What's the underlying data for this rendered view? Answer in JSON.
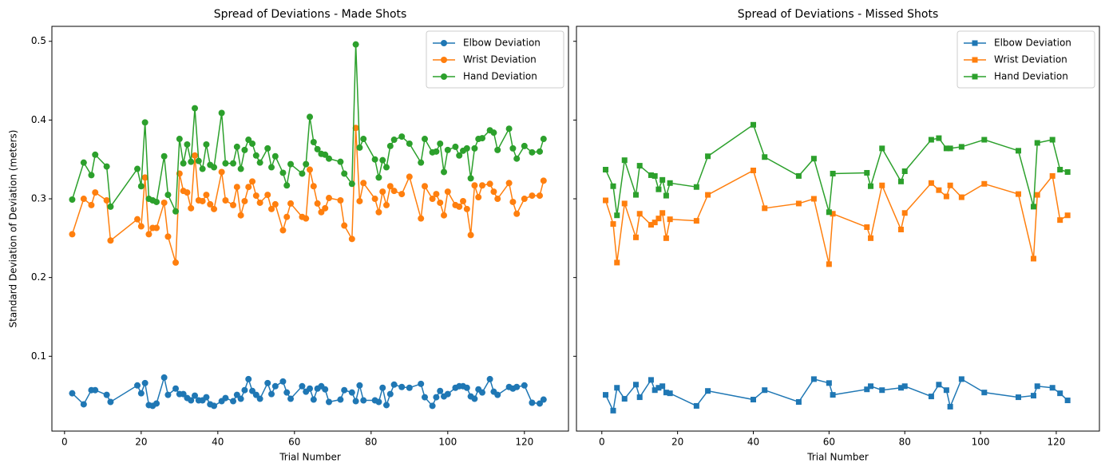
{
  "chart_data": [
    {
      "type": "line",
      "title": "Spread of Deviations - Made Shots",
      "xlabel": "Trial Number",
      "ylabel": "Standard Deviation of Deviation (meters)",
      "marker": "circle",
      "legend": "upper right",
      "xlim": [
        -3.3,
        131.5
      ],
      "ylim": [
        0.005,
        0.519
      ],
      "xticks": [
        0,
        20,
        40,
        60,
        80,
        100,
        120
      ],
      "yticks": [
        0.1,
        0.2,
        0.3,
        0.4,
        0.5
      ],
      "x": [
        2,
        5,
        7,
        8,
        11,
        12,
        19,
        20,
        21,
        22,
        23,
        24,
        26,
        27,
        29,
        30,
        31,
        32,
        33,
        34,
        35,
        36,
        37,
        38,
        39,
        41,
        42,
        44,
        45,
        46,
        47,
        48,
        49,
        50,
        51,
        53,
        54,
        55,
        57,
        58,
        59,
        62,
        63,
        64,
        65,
        66,
        67,
        68,
        69,
        72,
        73,
        75,
        76,
        77,
        78,
        81,
        82,
        83,
        84,
        85,
        86,
        88,
        90,
        93,
        94,
        96,
        97,
        98,
        99,
        100,
        102,
        103,
        104,
        105,
        106,
        107,
        108,
        109,
        111,
        112,
        113,
        116,
        117,
        118,
        120,
        122,
        124,
        125
      ],
      "series": [
        {
          "name": "Elbow Deviation",
          "color": "#1f77b4",
          "values": [
            0.053,
            0.039,
            0.057,
            0.057,
            0.051,
            0.042,
            0.063,
            0.053,
            0.066,
            0.038,
            0.037,
            0.04,
            0.073,
            0.051,
            0.059,
            0.052,
            0.052,
            0.047,
            0.044,
            0.05,
            0.044,
            0.044,
            0.048,
            0.039,
            0.037,
            0.043,
            0.047,
            0.043,
            0.051,
            0.046,
            0.057,
            0.071,
            0.056,
            0.051,
            0.046,
            0.066,
            0.052,
            0.062,
            0.068,
            0.054,
            0.046,
            0.062,
            0.055,
            0.059,
            0.045,
            0.059,
            0.062,
            0.058,
            0.042,
            0.045,
            0.057,
            0.054,
            0.043,
            0.063,
            0.044,
            0.044,
            0.042,
            0.06,
            0.038,
            0.052,
            0.064,
            0.061,
            0.06,
            0.065,
            0.048,
            0.037,
            0.048,
            0.056,
            0.049,
            0.052,
            0.06,
            0.062,
            0.062,
            0.06,
            0.049,
            0.046,
            0.058,
            0.054,
            0.071,
            0.055,
            0.051,
            0.061,
            0.059,
            0.061,
            0.063,
            0.041,
            0.04,
            0.045
          ]
        },
        {
          "name": "Wrist Deviation",
          "color": "#ff7f0e",
          "values": [
            0.255,
            0.3,
            0.292,
            0.308,
            0.298,
            0.247,
            0.274,
            0.265,
            0.327,
            0.255,
            0.263,
            0.263,
            0.295,
            0.252,
            0.219,
            0.332,
            0.31,
            0.308,
            0.288,
            0.355,
            0.298,
            0.297,
            0.305,
            0.293,
            0.287,
            0.334,
            0.298,
            0.292,
            0.315,
            0.279,
            0.297,
            0.315,
            0.322,
            0.304,
            0.295,
            0.305,
            0.287,
            0.293,
            0.26,
            0.277,
            0.294,
            0.277,
            0.275,
            0.337,
            0.316,
            0.294,
            0.283,
            0.288,
            0.301,
            0.298,
            0.266,
            0.249,
            0.39,
            0.297,
            0.32,
            0.3,
            0.283,
            0.309,
            0.292,
            0.316,
            0.31,
            0.306,
            0.328,
            0.275,
            0.316,
            0.3,
            0.306,
            0.295,
            0.279,
            0.309,
            0.292,
            0.29,
            0.297,
            0.287,
            0.254,
            0.317,
            0.302,
            0.317,
            0.319,
            0.309,
            0.3,
            0.32,
            0.296,
            0.281,
            0.3,
            0.304,
            0.304,
            0.323
          ]
        },
        {
          "name": "Hand Deviation",
          "color": "#2ca02c",
          "values": [
            0.299,
            0.346,
            0.33,
            0.356,
            0.341,
            0.29,
            0.338,
            0.316,
            0.397,
            0.3,
            0.298,
            0.296,
            0.354,
            0.305,
            0.284,
            0.376,
            0.345,
            0.369,
            0.347,
            0.415,
            0.348,
            0.338,
            0.369,
            0.343,
            0.34,
            0.409,
            0.345,
            0.345,
            0.366,
            0.338,
            0.362,
            0.375,
            0.37,
            0.355,
            0.346,
            0.364,
            0.34,
            0.354,
            0.333,
            0.317,
            0.344,
            0.332,
            0.344,
            0.404,
            0.372,
            0.363,
            0.357,
            0.356,
            0.351,
            0.347,
            0.332,
            0.319,
            0.496,
            0.365,
            0.376,
            0.35,
            0.327,
            0.349,
            0.34,
            0.367,
            0.375,
            0.379,
            0.37,
            0.346,
            0.376,
            0.359,
            0.36,
            0.37,
            0.334,
            0.362,
            0.366,
            0.355,
            0.361,
            0.364,
            0.326,
            0.364,
            0.376,
            0.377,
            0.387,
            0.384,
            0.362,
            0.389,
            0.364,
            0.351,
            0.367,
            0.359,
            0.36,
            0.376
          ]
        }
      ]
    },
    {
      "type": "line",
      "title": "Spread of Deviations - Missed Shots",
      "xlabel": "Trial Number",
      "marker": "square",
      "legend": "upper right",
      "sharey": true,
      "xlim": [
        -6.7,
        131.4
      ],
      "ylim": [
        0.005,
        0.519
      ],
      "xticks": [
        0,
        20,
        40,
        60,
        80,
        100,
        120
      ],
      "yticks": [
        0.1,
        0.2,
        0.3,
        0.4,
        0.5
      ],
      "x": [
        1,
        3,
        4,
        6,
        9,
        10,
        13,
        14,
        15,
        16,
        17,
        18,
        25,
        28,
        40,
        43,
        52,
        56,
        60,
        61,
        70,
        71,
        74,
        79,
        80,
        87,
        89,
        91,
        92,
        95,
        101,
        110,
        114,
        115,
        119,
        121,
        123
      ],
      "series": [
        {
          "name": "Elbow Deviation",
          "color": "#1f77b4",
          "values": [
            0.051,
            0.031,
            0.06,
            0.046,
            0.064,
            0.048,
            0.07,
            0.057,
            0.06,
            0.062,
            0.054,
            0.053,
            0.037,
            0.056,
            0.045,
            0.057,
            0.042,
            0.071,
            0.066,
            0.051,
            0.058,
            0.062,
            0.057,
            0.06,
            0.062,
            0.049,
            0.064,
            0.057,
            0.036,
            0.071,
            0.054,
            0.048,
            0.05,
            0.062,
            0.06,
            0.053,
            0.044
          ]
        },
        {
          "name": "Wrist Deviation",
          "color": "#ff7f0e",
          "values": [
            0.298,
            0.268,
            0.219,
            0.294,
            0.251,
            0.281,
            0.267,
            0.27,
            0.275,
            0.282,
            0.25,
            0.274,
            0.272,
            0.305,
            0.336,
            0.288,
            0.294,
            0.3,
            0.217,
            0.281,
            0.264,
            0.25,
            0.317,
            0.261,
            0.282,
            0.32,
            0.311,
            0.303,
            0.317,
            0.302,
            0.319,
            0.306,
            0.224,
            0.305,
            0.329,
            0.273,
            0.279
          ]
        },
        {
          "name": "Hand Deviation",
          "color": "#2ca02c",
          "values": [
            0.337,
            0.316,
            0.279,
            0.349,
            0.305,
            0.342,
            0.33,
            0.329,
            0.312,
            0.324,
            0.304,
            0.32,
            0.315,
            0.354,
            0.394,
            0.353,
            0.329,
            0.351,
            0.283,
            0.332,
            0.333,
            0.316,
            0.364,
            0.322,
            0.335,
            0.375,
            0.377,
            0.364,
            0.364,
            0.366,
            0.375,
            0.361,
            0.29,
            0.371,
            0.375,
            0.337,
            0.334
          ]
        }
      ]
    }
  ]
}
